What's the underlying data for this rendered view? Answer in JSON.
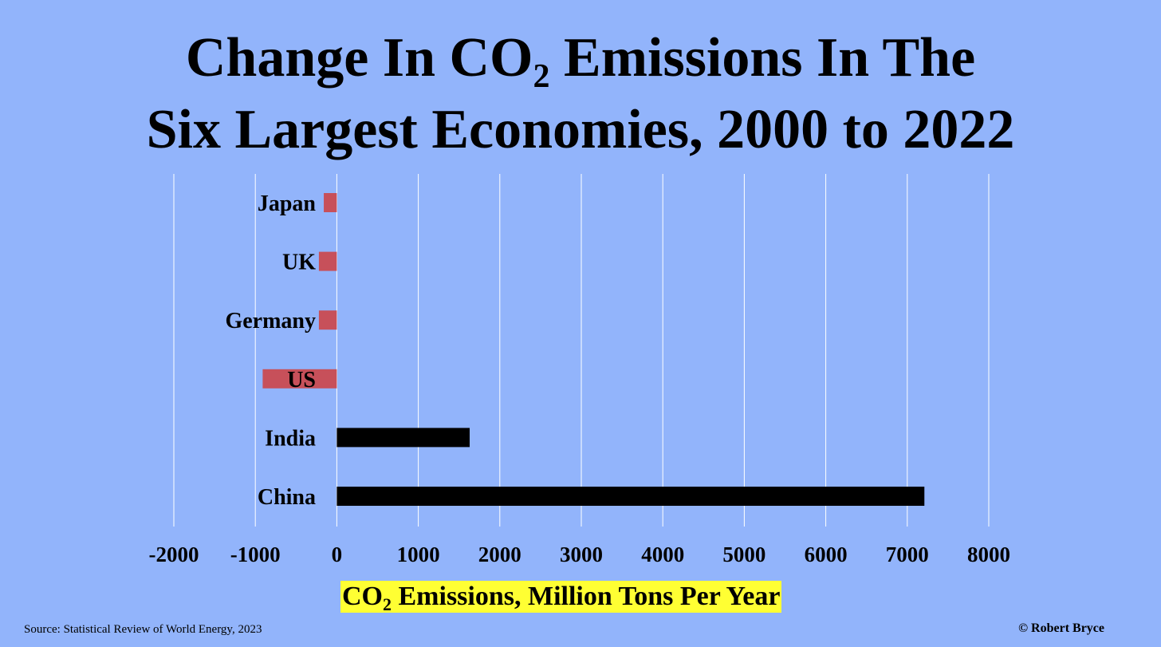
{
  "title": {
    "line1_pre": "Change In CO",
    "line1_sub": "2",
    "line1_post": " Emissions In The",
    "line2": "Six Largest Economies, 2000 to 2022"
  },
  "colors": {
    "background": "#92b4fb",
    "negative": "#c7505a",
    "positive": "#000000",
    "xlabel_highlight": "#ffff33",
    "gridline": "#ffffff"
  },
  "chart_data": {
    "type": "bar",
    "orientation": "horizontal",
    "title": "Change In CO2 Emissions In The Six Largest Economies, 2000 to 2022",
    "categories": [
      "Japan",
      "UK",
      "Germany",
      "US",
      "India",
      "China"
    ],
    "values": [
      -160,
      -220,
      -220,
      -910,
      1630,
      7210
    ],
    "xlabel": "CO2 Emissions, Million Tons Per Year",
    "ylabel": "",
    "xlim": [
      -2000,
      8000
    ],
    "xticks": [
      -2000,
      -1000,
      0,
      1000,
      2000,
      3000,
      4000,
      5000,
      6000,
      7000,
      8000
    ],
    "xtick_labels": [
      "-2000",
      "-1000",
      "0",
      "1000",
      "2000",
      "3000",
      "4000",
      "5000",
      "6000",
      "7000",
      "8000"
    ],
    "grid": true,
    "legend": "none"
  },
  "xlabel": {
    "pre": "CO",
    "sub": "2",
    "post": " Emissions, Million Tons Per Year"
  },
  "footer": {
    "source": "Source: Statistical Review of World Energy, 2023",
    "credit": "© Robert Bryce"
  }
}
